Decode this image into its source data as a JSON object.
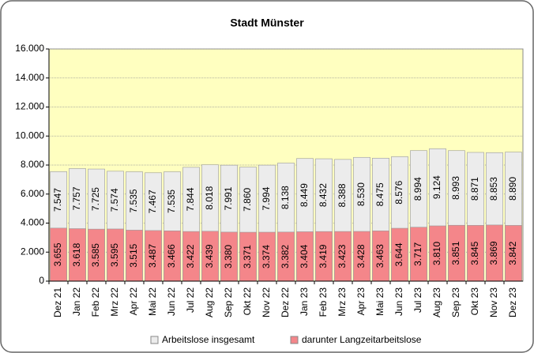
{
  "chart_data": {
    "type": "bar",
    "barmode": "overlay",
    "title": "Stadt Münster",
    "categories": [
      "Dez 21",
      "Jan 22",
      "Feb 22",
      "Mrz 22",
      "Apr 22",
      "Mai 22",
      "Jun 22",
      "Jul 22",
      "Aug 22",
      "Sep 22",
      "Okt 22",
      "Nov 22",
      "Dez 22",
      "Jan 23",
      "Feb 23",
      "Mrz 23",
      "Apr 23",
      "Mai 23",
      "Jun 23",
      "Jul 23",
      "Aug 23",
      "Sep 23",
      "Okt 23",
      "Nov 23",
      "Dez 23"
    ],
    "series": [
      {
        "name": "Arbeitslose insgesamt",
        "color": "#ececec",
        "values": [
          7547,
          7757,
          7725,
          7574,
          7535,
          7467,
          7535,
          7844,
          8018,
          7991,
          7860,
          7994,
          8138,
          8449,
          8432,
          8388,
          8530,
          8475,
          8576,
          8994,
          9124,
          8993,
          8871,
          8853,
          8890
        ],
        "value_labels": [
          "7.547",
          "7.757",
          "7.725",
          "7.574",
          "7.535",
          "7.467",
          "7.535",
          "7.844",
          "8.018",
          "7.991",
          "7.860",
          "7.994",
          "8.138",
          "8.449",
          "8.432",
          "8.388",
          "8.530",
          "8.475",
          "8.576",
          "8.994",
          "9.124",
          "8.993",
          "8.871",
          "8.853",
          "8.890"
        ]
      },
      {
        "name": "darunter Langzeitarbeitslose",
        "color": "#f4868a",
        "values": [
          3655,
          3618,
          3585,
          3595,
          3515,
          3487,
          3466,
          3422,
          3439,
          3380,
          3371,
          3374,
          3382,
          3404,
          3419,
          3423,
          3428,
          3463,
          3644,
          3717,
          3810,
          3851,
          3845,
          3869,
          3842
        ],
        "value_labels": [
          "3.655",
          "3.618",
          "3.585",
          "3.595",
          "3.515",
          "3.487",
          "3.466",
          "3.422",
          "3.439",
          "3.380",
          "3.371",
          "3.374",
          "3.382",
          "3.404",
          "3.419",
          "3.423",
          "3.428",
          "3.463",
          "3.644",
          "3.717",
          "3.810",
          "3.851",
          "3.845",
          "3.869",
          "3.842"
        ]
      }
    ],
    "ylim": [
      0,
      16000
    ],
    "yticks": [
      0,
      {
        "value": 2000,
        "label": "2.000"
      },
      {
        "value": 4000,
        "label": "4.000"
      },
      {
        "value": 6000,
        "label": "6.000"
      },
      {
        "value": 8000,
        "label": "8.000"
      },
      {
        "value": 10000,
        "label": "10.000"
      },
      {
        "value": 12000,
        "label": "12.000"
      },
      {
        "value": 14000,
        "label": "14.000"
      },
      {
        "value": 16000,
        "label": "16.000"
      }
    ],
    "grid": true,
    "plot_background": "#ffffc0"
  }
}
